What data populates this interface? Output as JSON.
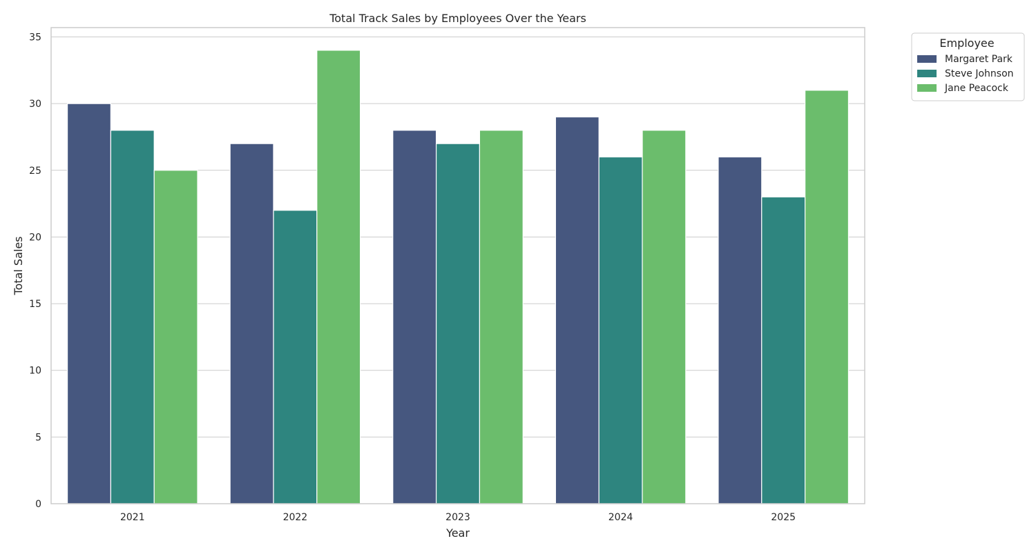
{
  "chart_data": {
    "type": "bar",
    "title": "Total Track Sales by Employees Over the Years",
    "xlabel": "Year",
    "ylabel": "Total Sales",
    "categories": [
      "2021",
      "2022",
      "2023",
      "2024",
      "2025"
    ],
    "series": [
      {
        "name": "Margaret Park",
        "color": "#46577f",
        "values": [
          30,
          27,
          28,
          29,
          26
        ]
      },
      {
        "name": "Steve Johnson",
        "color": "#2e857f",
        "values": [
          28,
          22,
          27,
          26,
          23
        ]
      },
      {
        "name": "Jane Peacock",
        "color": "#6bbd6c",
        "values": [
          25,
          34,
          28,
          28,
          31
        ]
      }
    ],
    "ylim": [
      0,
      35.7
    ],
    "yticks": [
      0,
      5,
      10,
      15,
      20,
      25,
      30,
      35
    ],
    "grid": "horizontal",
    "legend": {
      "title": "Employee",
      "position": "outside-top-right"
    }
  }
}
